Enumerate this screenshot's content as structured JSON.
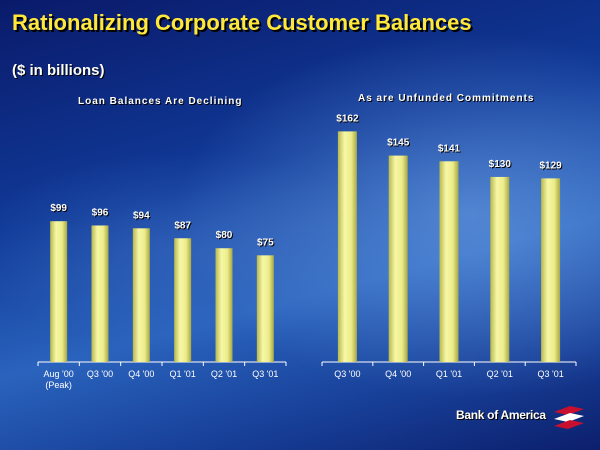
{
  "slide": {
    "title": "Rationalizing Corporate Customer Balances",
    "subtitle": "($ in billions)"
  },
  "brand": {
    "name": "Bank of America",
    "logo_icon": "flag-logo-icon",
    "accent_red": "#c8102e"
  },
  "colors": {
    "bar_fill": "#ecec8a",
    "title_yellow": "#ffe83a",
    "text_white": "#ffffff"
  },
  "chart_data": [
    {
      "type": "bar",
      "title": "Loan Balances Are Declining",
      "categories": [
        "Aug '00\n(Peak)",
        "Q3 '00",
        "Q4 '00",
        "Q1 '01",
        "Q2 '01",
        "Q3 '01"
      ],
      "values": [
        99,
        96,
        94,
        87,
        80,
        75
      ],
      "data_labels": [
        "$99",
        "$96",
        "$94",
        "$87",
        "$80",
        "$75"
      ],
      "ylim": [
        0,
        180
      ],
      "grid": false,
      "xlabel": "",
      "ylabel": ""
    },
    {
      "type": "bar",
      "title": "As are Unfunded Commitments",
      "categories": [
        "Q3 '00",
        "Q4 '00",
        "Q1 '01",
        "Q2 '01",
        "Q3 '01"
      ],
      "values": [
        162,
        145,
        141,
        130,
        129
      ],
      "data_labels": [
        "$162",
        "$145",
        "$141",
        "$130",
        "$129"
      ],
      "ylim": [
        0,
        170
      ],
      "grid": false,
      "xlabel": "",
      "ylabel": ""
    }
  ]
}
